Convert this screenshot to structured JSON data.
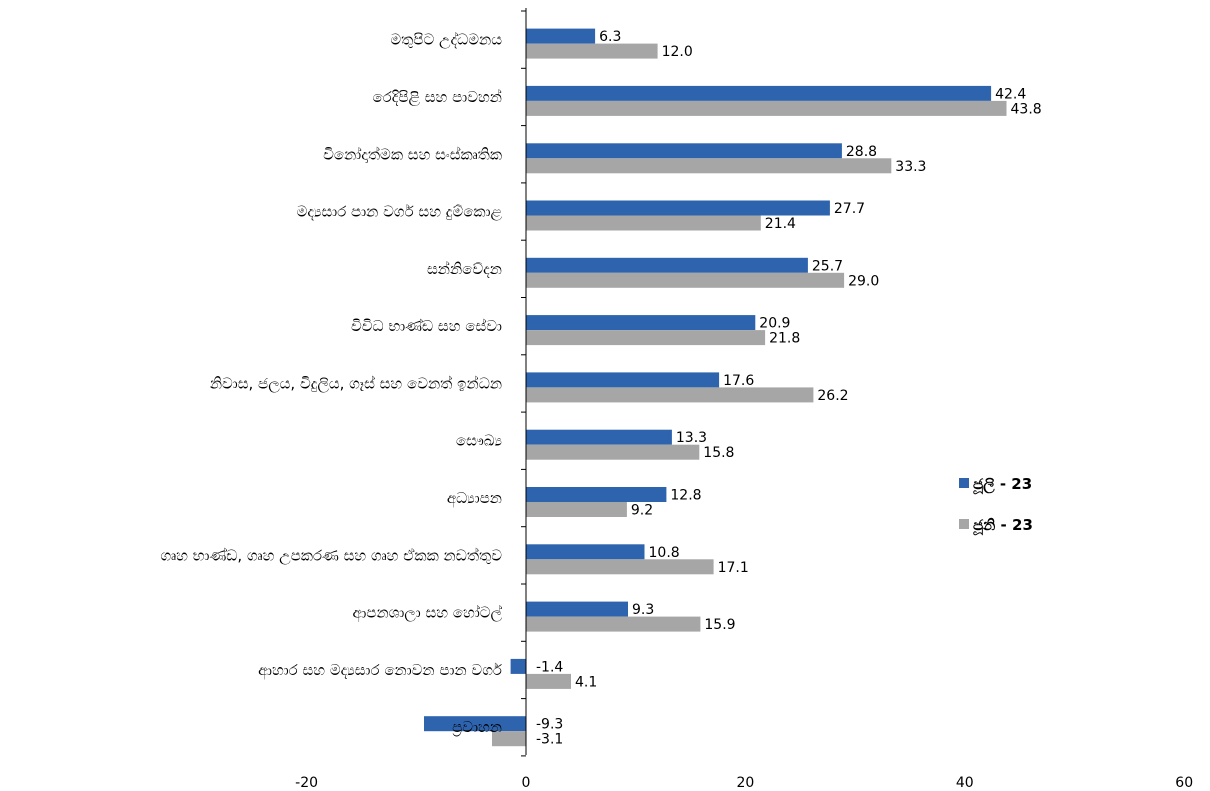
{
  "chart_data": {
    "type": "bar",
    "orientation": "horizontal",
    "categories": [
      "මතුපිට උද්ධමනය",
      "රෙදිපිළි සහ පාවහන්",
      "විනෝදාත්මක සහ සංස්කෘතික",
      "මද්‍යසාර පාන වර්ග සහ දුම්කොළ",
      "සන්නිවේදන",
      "විවිධ භාණ්ඩ සහ සේවා",
      "නිවාස, ජලය, විදුලිය, ගෑස් සහ වෙනත් ඉන්ධන",
      "සෞඛ්‍ය",
      "අධ්‍යාපන",
      "ගෘහ භාණ්ඩ, ගෘහ උපකරණ සහ ගෘහ ඒකක නඩත්තුව",
      "ආපනශාලා සහ හෝටල්",
      "ආහාර සහ මද්‍යසාර නොවන පාන වර්ග",
      "ප්‍රවාහන"
    ],
    "series": [
      {
        "name": "ජූලි - 23",
        "color": "#2E63AE",
        "values": [
          6.3,
          42.4,
          28.8,
          27.7,
          25.7,
          20.9,
          17.6,
          13.3,
          12.8,
          10.8,
          9.3,
          -1.4,
          -9.3
        ],
        "labels": [
          "6.3",
          "42.4",
          "28.8",
          "27.7",
          "25.7",
          "20.9",
          "17.6",
          "13.3",
          "12.8",
          "10.8",
          "9.3",
          "-1.4",
          "-9.3"
        ]
      },
      {
        "name": "ජූනි - 23",
        "color": "#A6A6A6",
        "values": [
          12.0,
          43.8,
          33.3,
          21.4,
          29.0,
          21.8,
          26.2,
          15.8,
          9.2,
          17.1,
          15.9,
          4.1,
          -3.1
        ],
        "labels": [
          "12.0",
          "43.8",
          "33.3",
          "21.4",
          "29.0",
          "21.8",
          "26.2",
          "15.8",
          "9.2",
          "17.1",
          "15.9",
          "4.1",
          "-3.1"
        ]
      }
    ],
    "xlim": [
      -20,
      60
    ],
    "xticks": [
      -20,
      0,
      20,
      40,
      60
    ],
    "xtick_labels": [
      "-20",
      "0",
      "20",
      "40",
      "60"
    ],
    "grid": false,
    "legend": "right"
  }
}
